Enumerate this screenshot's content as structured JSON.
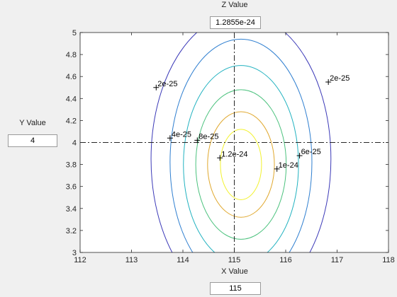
{
  "z_control": {
    "label": "Z Value",
    "value": "1.2855e-24"
  },
  "y_control": {
    "label": "Y Value",
    "value": "4"
  },
  "x_control": {
    "label": "X Value",
    "value": "115"
  },
  "chart_data": {
    "type": "contour",
    "xlim": [
      112,
      118
    ],
    "ylim": [
      3,
      5
    ],
    "xticks": [
      112,
      113,
      114,
      115,
      116,
      117,
      118
    ],
    "yticks": [
      3,
      3.2,
      3.4,
      3.6,
      3.8,
      4,
      4.2,
      4.4,
      4.6,
      4.8,
      5
    ],
    "crosshair": {
      "x": 115,
      "y": 4
    },
    "contours": [
      {
        "level": "2e-25",
        "cx": 115.13,
        "cy": 3.85,
        "rx": 1.75,
        "ry": 1.32,
        "color": "#3c3ab8"
      },
      {
        "level": "4e-25",
        "cx": 115.13,
        "cy": 3.82,
        "rx": 1.38,
        "ry": 1.12,
        "color": "#2f7fd0"
      },
      {
        "level": "6e-25",
        "cx": 115.13,
        "cy": 3.8,
        "rx": 1.12,
        "ry": 0.9,
        "color": "#22b2c0"
      },
      {
        "level": "8e-25",
        "cx": 115.13,
        "cy": 3.8,
        "rx": 0.88,
        "ry": 0.68,
        "color": "#4cc27e"
      },
      {
        "level": "1e-24",
        "cx": 115.13,
        "cy": 3.8,
        "rx": 0.65,
        "ry": 0.48,
        "color": "#e0a82e"
      },
      {
        "level": "1.2e-24",
        "cx": 115.13,
        "cy": 3.8,
        "rx": 0.4,
        "ry": 0.32,
        "color": "#f2f22e"
      }
    ],
    "contour_labels": [
      {
        "text": "2e-25",
        "x": 113.48,
        "y": 4.5
      },
      {
        "text": "2e-25",
        "x": 116.83,
        "y": 4.55
      },
      {
        "text": "4e-25",
        "x": 113.75,
        "y": 4.04
      },
      {
        "text": "8e-25",
        "x": 114.28,
        "y": 4.02
      },
      {
        "text": "1.2e-24",
        "x": 114.72,
        "y": 3.86
      },
      {
        "text": "1e-24",
        "x": 115.83,
        "y": 3.76
      },
      {
        "text": "6e-25",
        "x": 116.27,
        "y": 3.88
      }
    ]
  }
}
